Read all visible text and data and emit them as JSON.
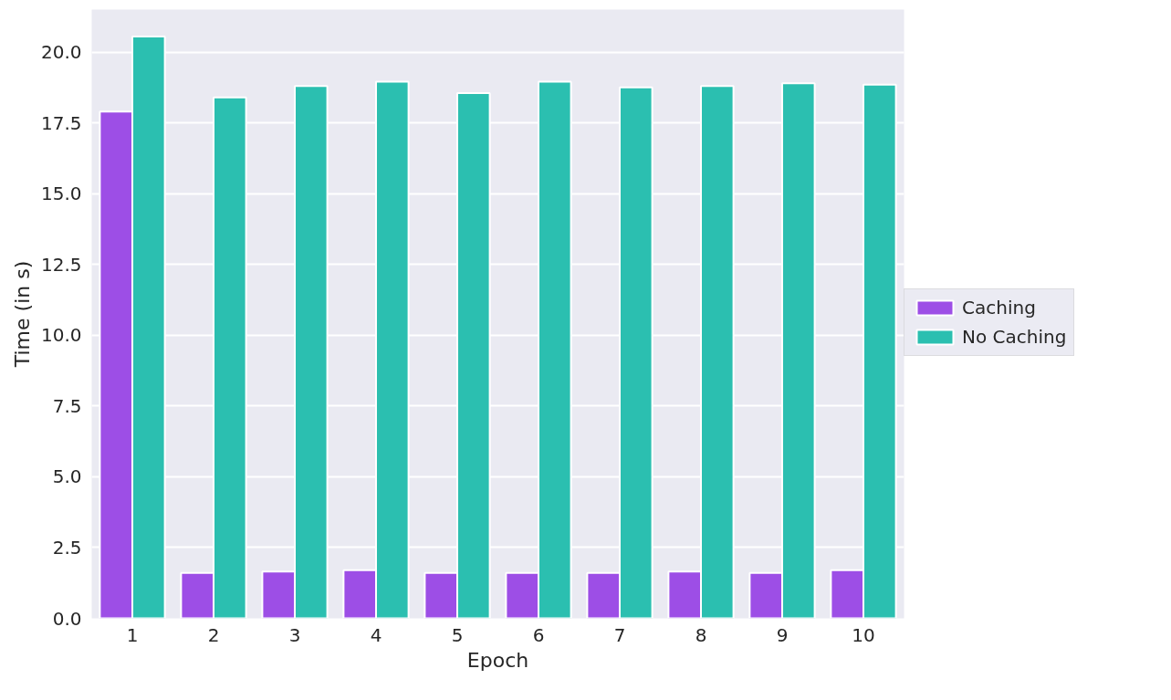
{
  "chart_data": {
    "type": "bar",
    "xlabel": "Epoch",
    "ylabel": "Time (in s)",
    "categories": [
      "1",
      "2",
      "3",
      "4",
      "5",
      "6",
      "7",
      "8",
      "9",
      "10"
    ],
    "series": [
      {
        "name": "Caching",
        "color": "#9d4ee6",
        "values": [
          17.9,
          1.6,
          1.65,
          1.7,
          1.6,
          1.6,
          1.6,
          1.65,
          1.6,
          1.7
        ]
      },
      {
        "name": "No Caching",
        "color": "#2bbfb0",
        "values": [
          20.55,
          18.4,
          18.8,
          18.95,
          18.55,
          18.95,
          18.75,
          18.8,
          18.9,
          18.85
        ]
      }
    ],
    "ylim": [
      0,
      21.5
    ],
    "yticks": [
      {
        "value": 0,
        "label": "0.0"
      },
      2.5,
      {
        "value": 5,
        "label": "5.0"
      },
      7.5,
      {
        "value": 10,
        "label": "10.0"
      },
      12.5,
      {
        "value": 15,
        "label": "15.0"
      },
      17.5,
      {
        "value": 20,
        "label": "20.0"
      }
    ],
    "grid": "y",
    "legend": "right"
  }
}
